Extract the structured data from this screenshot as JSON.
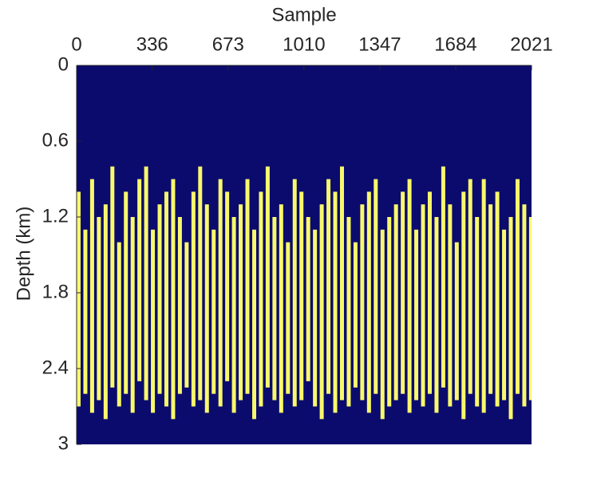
{
  "chart_data": {
    "type": "streaks",
    "xlabel": "Sample",
    "ylabel": "Depth (km)",
    "xlim": [
      0,
      2021
    ],
    "xticks": [
      0,
      336,
      673,
      1010,
      1347,
      1684,
      2021
    ],
    "ylim": [
      0,
      3
    ],
    "yticks": [
      0,
      0.6,
      1.2,
      1.8,
      2.4,
      3
    ],
    "y_reversed": true,
    "x_axis_position": "top",
    "background": "#0b0b6e",
    "color": "#f8f86c",
    "x": [
      0,
      30,
      60,
      90,
      120,
      150,
      180,
      210,
      240,
      270,
      300,
      330,
      360,
      390,
      420,
      450,
      480,
      510,
      540,
      570,
      600,
      630,
      660,
      690,
      720,
      750,
      780,
      810,
      840,
      870,
      900,
      930,
      960,
      990,
      1020,
      1050,
      1080,
      1110,
      1140,
      1170,
      1200,
      1230,
      1260,
      1290,
      1320,
      1350,
      1380,
      1410,
      1440,
      1470,
      1500,
      1530,
      1560,
      1590,
      1620,
      1650,
      1680,
      1710,
      1740,
      1770,
      1800,
      1830,
      1860,
      1890,
      1920,
      1950,
      1980,
      2010
    ],
    "top": [
      1.0,
      1.3,
      0.9,
      1.2,
      1.1,
      0.8,
      1.4,
      1.0,
      1.2,
      0.9,
      0.8,
      1.3,
      1.1,
      1.0,
      0.9,
      1.2,
      1.4,
      1.0,
      0.8,
      1.1,
      1.3,
      0.9,
      1.0,
      1.2,
      1.1,
      0.9,
      1.3,
      1.0,
      0.8,
      1.2,
      1.1,
      1.4,
      0.9,
      1.0,
      1.2,
      1.3,
      1.1,
      0.9,
      1.0,
      0.8,
      1.2,
      1.4,
      1.1,
      1.0,
      0.9,
      1.3,
      1.2,
      1.1,
      1.0,
      0.9,
      1.3,
      1.1,
      1.0,
      1.2,
      0.8,
      1.1,
      1.4,
      1.0,
      0.9,
      1.2,
      0.9,
      1.1,
      1.0,
      1.3,
      1.2,
      0.9,
      1.1,
      1.2
    ],
    "bottom": [
      2.7,
      2.6,
      2.75,
      2.65,
      2.8,
      2.55,
      2.7,
      2.6,
      2.75,
      2.5,
      2.65,
      2.75,
      2.6,
      2.7,
      2.8,
      2.6,
      2.55,
      2.7,
      2.65,
      2.75,
      2.6,
      2.7,
      2.5,
      2.75,
      2.65,
      2.6,
      2.8,
      2.7,
      2.55,
      2.65,
      2.75,
      2.6,
      2.7,
      2.65,
      2.5,
      2.7,
      2.8,
      2.6,
      2.75,
      2.65,
      2.7,
      2.55,
      2.65,
      2.75,
      2.6,
      2.8,
      2.7,
      2.65,
      2.6,
      2.75,
      2.65,
      2.7,
      2.6,
      2.75,
      2.55,
      2.7,
      2.65,
      2.8,
      2.6,
      2.7,
      2.75,
      2.6,
      2.7,
      2.65,
      2.8,
      2.6,
      2.7,
      2.65
    ]
  }
}
